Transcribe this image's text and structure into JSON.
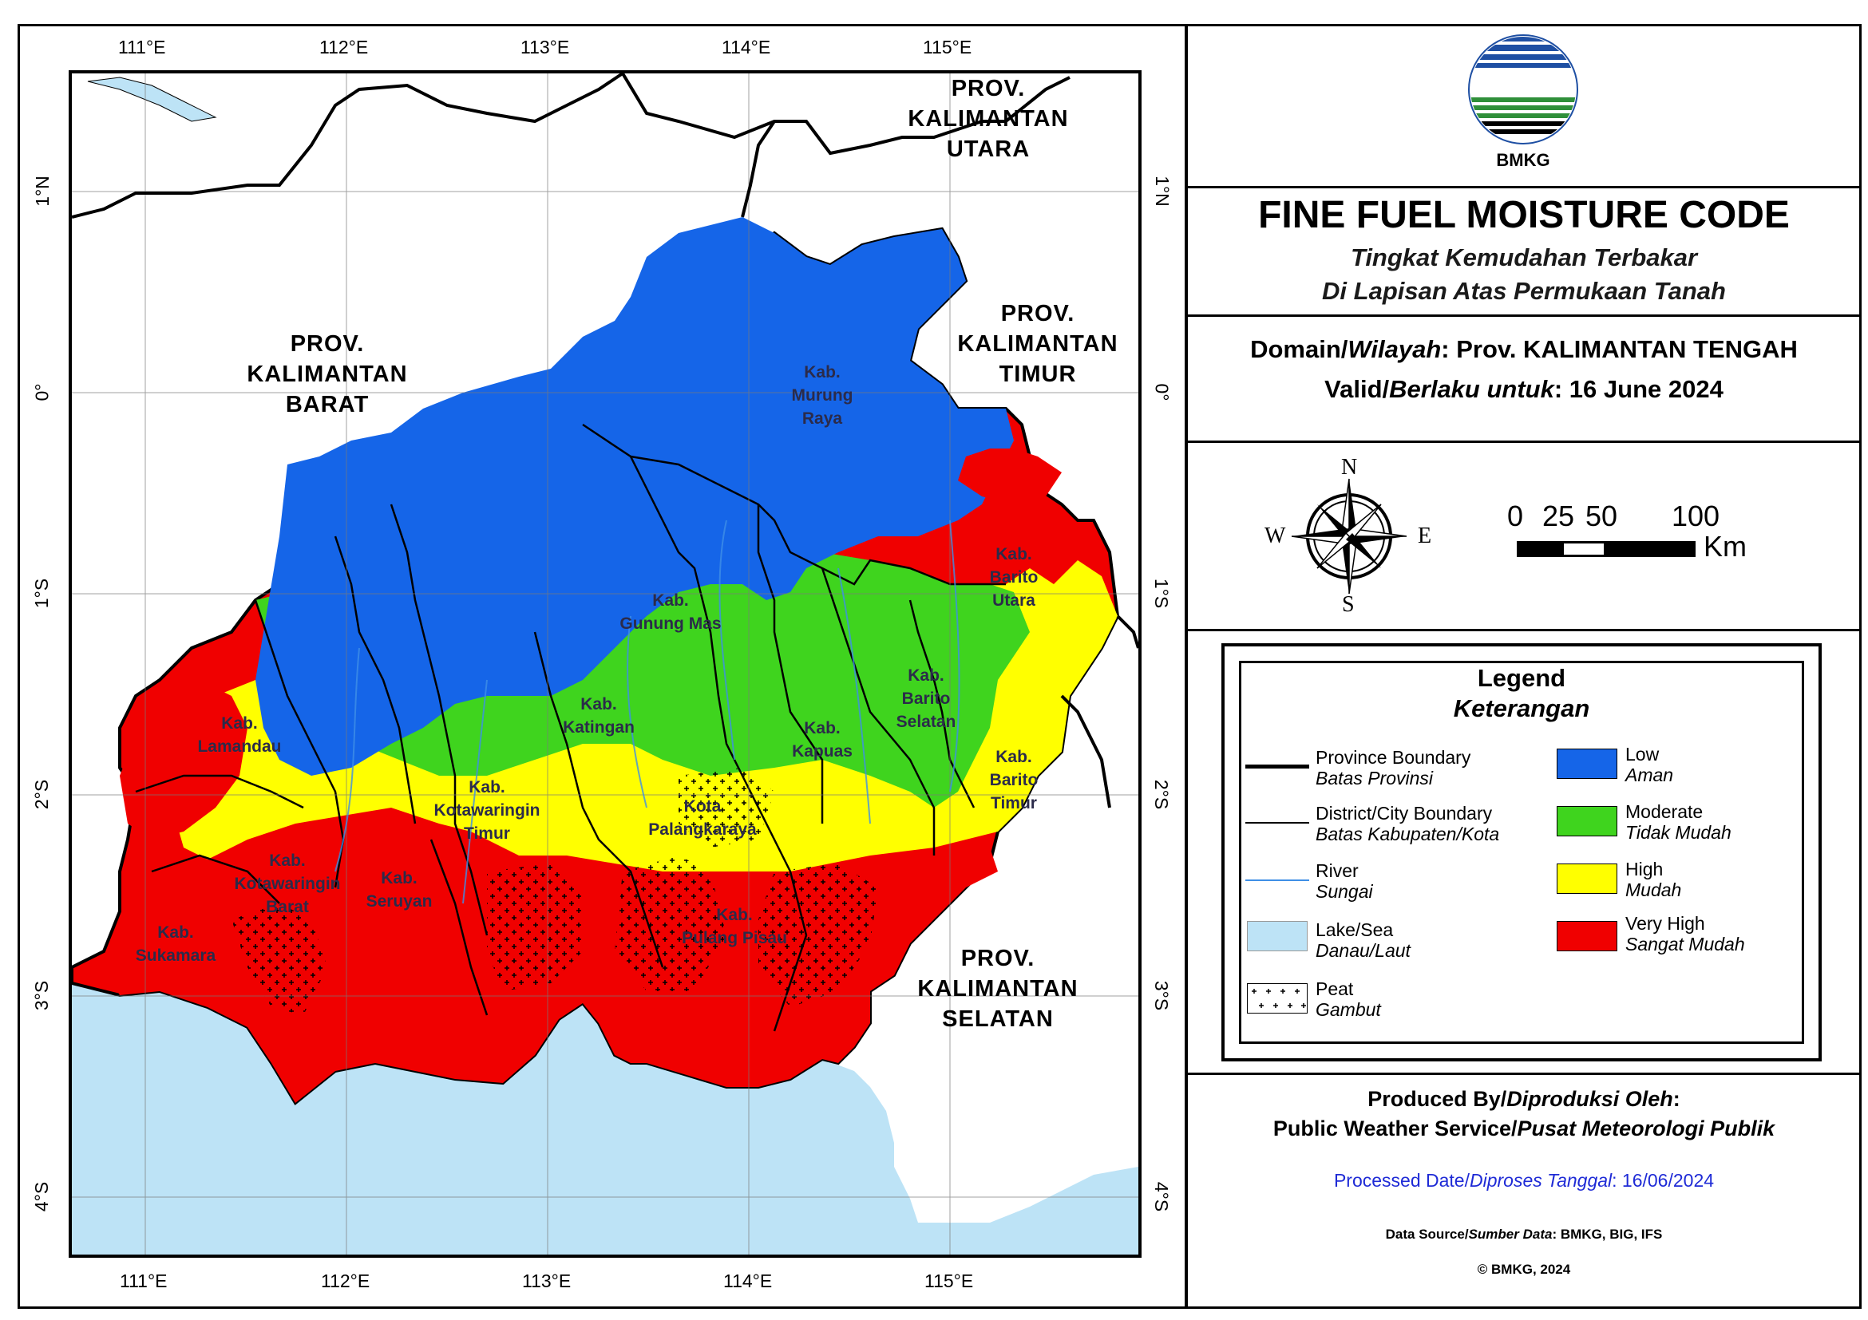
{
  "map": {
    "lon_ticks": [
      "111°E",
      "112°E",
      "113°E",
      "114°E",
      "115°E"
    ],
    "lat_ticks": [
      "1°N",
      "0°",
      "1°S",
      "2°S",
      "3°S",
      "4°S"
    ],
    "provinces": {
      "kaltara": [
        "PROV.",
        "KALIMANTAN",
        "UTARA"
      ],
      "kalbar": [
        "PROV.",
        "KALIMANTAN",
        "BARAT"
      ],
      "kaltim": [
        "PROV.",
        "KALIMANTAN",
        "TIMUR"
      ],
      "kalsel": [
        "PROV.",
        "KALIMANTAN",
        "SELATAN"
      ]
    },
    "regencies": {
      "murung_raya": [
        "Kab.",
        "Murung",
        "Raya"
      ],
      "barito_utara": [
        "Kab.",
        "Barito",
        "Utara"
      ],
      "gunung_mas": [
        "Kab.",
        "Gunung Mas"
      ],
      "lamandau": [
        "Kab.",
        "Lamandau"
      ],
      "katingan": [
        "Kab.",
        "Katingan"
      ],
      "barito_selatan": [
        "Kab.",
        "Barito",
        "Selatan"
      ],
      "kapuas": [
        "Kab.",
        "Kapuas"
      ],
      "barito_timur": [
        "Kab.",
        "Barito",
        "Timur"
      ],
      "kotim": [
        "Kab.",
        "Kotawaringin",
        "Timur"
      ],
      "palangkaraya": [
        "Kota",
        "Palangkaraya"
      ],
      "kobar": [
        "Kab.",
        "Kotawaringin",
        "Barat"
      ],
      "seruyan": [
        "Kab.",
        "Seruyan"
      ],
      "sukamara": [
        "Kab.",
        "Sukamara"
      ],
      "pulang_pisau": [
        "Kab.",
        "Pulang Pisau"
      ]
    },
    "colors": {
      "low": "#1565e8",
      "moderate": "#3fd41e",
      "high": "#ffff00",
      "very_high": "#f00000",
      "sea": "#bde3f6",
      "land_outside": "#ffffff"
    }
  },
  "header": {
    "logo_text": "BMKG",
    "title": "FINE FUEL MOISTURE CODE",
    "subtitle_1": "Tingkat Kemudahan Terbakar",
    "subtitle_2": "Di Lapisan Atas Permukaan Tanah"
  },
  "domain": {
    "label_en": "Domain/",
    "label_id": "Wilayah",
    "value": ": Prov. KALIMANTAN TENGAH"
  },
  "valid": {
    "label_en": "Valid/",
    "label_id": "Berlaku untuk",
    "value": ": 16 June 2024"
  },
  "compass": {
    "n": "N",
    "s": "S",
    "e": "E",
    "w": "W"
  },
  "scale": {
    "labels": [
      "0",
      "25",
      "50",
      "100"
    ],
    "unit": "Km"
  },
  "legend": {
    "title": "Legend",
    "subtitle": "Keterangan",
    "lines": [
      {
        "label": "Province Boundary",
        "label_id": "Batas Provinsi",
        "color": "#000000"
      },
      {
        "label": "District/City Boundary",
        "label_id": "Batas Kabupaten/Kota",
        "color": "#000000"
      },
      {
        "label": "River",
        "label_id": "Sungai",
        "color": "#3f8fe6"
      },
      {
        "label": "Lake/Sea",
        "label_id": "Danau/Laut",
        "color": "#bde3f6"
      },
      {
        "label": "Peat",
        "label_id": "Gambut",
        "color": "#ffffff"
      }
    ],
    "classes": [
      {
        "label": "Low",
        "label_id": "Aman",
        "color": "#1565e8"
      },
      {
        "label": "Moderate",
        "label_id": "Tidak Mudah",
        "color": "#3fd41e"
      },
      {
        "label": "High",
        "label_id": "Mudah",
        "color": "#ffff00"
      },
      {
        "label": "Very High",
        "label_id": "Sangat Mudah",
        "color": "#f00000"
      }
    ]
  },
  "footer": {
    "produced_en": "Produced By/",
    "produced_id": "Diproduksi Oleh",
    "service_en": "Public Weather Service/",
    "service_id": "Pusat Meteorologi Publik",
    "processed_en": "Processed Date/",
    "processed_id": "Diproses Tanggal",
    "processed_value": ": 16/06/2024",
    "source_en": "Data Source/",
    "source_id": "Sumber Data",
    "source_value": ": BMKG, BIG, IFS",
    "copyright": "© BMKG, 2024"
  }
}
